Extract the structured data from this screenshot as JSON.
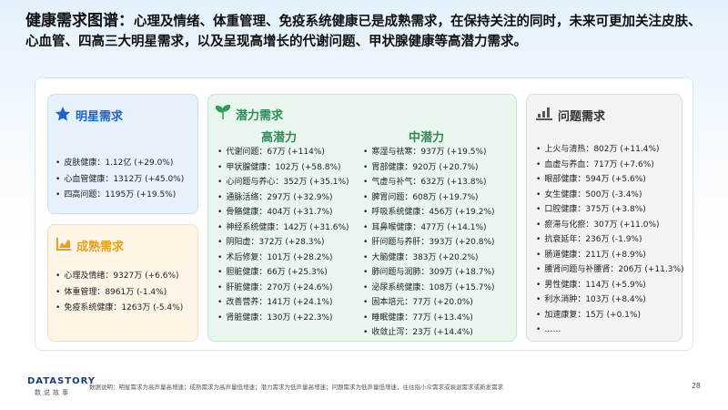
{
  "header": {
    "title_lead": "健康需求图谱：",
    "title_text": "心理及情绪、体重管理、免疫系统健康已是成熟需求，在保持关注的同时，未来可更加关注皮肤、心血管、四高三大明星需求，以及呈现高增长的代谢问题、甲状腺健康等高潜力需求。"
  },
  "star": {
    "title": "明星需求",
    "items": [
      "皮肤健康：1.12亿 (+29.0%)",
      "心血管健康：1312万 (+45.0%)",
      "四高问题：1195万 (+19.5%)"
    ]
  },
  "mature": {
    "title": "成熟需求",
    "items": [
      "心理及情绪：9327万 (+6.6%)",
      "体重管理：8961万 (-1.4%)",
      "免疫系统健康：1263万 (-5.4%)"
    ]
  },
  "potential": {
    "title": "潜力需求",
    "high": {
      "title": "高潜力",
      "items": [
        "代谢问题：67万 (+114%)",
        "甲状腺健康：102万 (+58.8%)",
        "心问题与养心：352万 (+35.1%)",
        "通脉活络：297万 (+32.9%)",
        "骨骼健康：404万 (+31.7%)",
        "神经系统健康：142万 (+31.6%)",
        "阴阳虚：372万 (+28.3%)",
        "术后修复：101万 (+28.2%)",
        "胆脏健康：66万 (+25.3%)",
        "肝脏健康：270万 (+24.6%)",
        "改善营养：141万 (+24.1%)",
        "肾脏健康：130万 (+22.3%)"
      ]
    },
    "mid": {
      "title": "中潜力",
      "items": [
        "寒湿与祛寒：937万 (+19.5%)",
        "胃部健康：920万 (+20.7%)",
        "气虚与补气：632万 (+13.8%)",
        "脾胃问题：608万 (+19.7%)",
        "呼吸系统健康：456万 (+19.2%)",
        "耳鼻喉健康：477万 (+14.1%)",
        "肝问题与养肝：393万 (+20.8%)",
        "大脑健康：383万 (+20.2%)",
        "肺问题与润肺：309万 (+18.7%)",
        "泌尿系统健康：108万 (+15.7%)",
        "固本培元：77万 (+20.0%)",
        "睡眠健康：77万 (+13.4%)",
        "收敛止泻：23万 (+14.4%)"
      ]
    }
  },
  "problem": {
    "title": "问题需求",
    "items": [
      "上火与清热：802万 (+11.4%)",
      "血虚与养血：717万 (+7.6%)",
      "眼部健康：594万 (+5.6%)",
      "女生健康：500万 (-3.4%)",
      "口腔健康：375万 (+3.8%)",
      "瘀滞与化瘀：307万 (+11.0%)",
      "抗衰延年：236万 (-1.9%)",
      "肠道健康：211万 (+8.9%)",
      "腰肾问题与补腰肾：206万 (+11.3%)",
      "男性健康：114万 (+5.9%)",
      "利水消肿：103万 (+8.4%)",
      "加速康复：15万 (+0.1%)",
      "……"
    ]
  },
  "footer": {
    "logo": "DATASTORY",
    "logo_sub": "数说故事",
    "note": "数据说明：明星需求为高声量高增速；成熟需求为高声量低增速；潜力需求为低声量高增速；问题需求为低声量低增速，往往指小众需求或衰退需求或新发需求",
    "page": "28"
  }
}
